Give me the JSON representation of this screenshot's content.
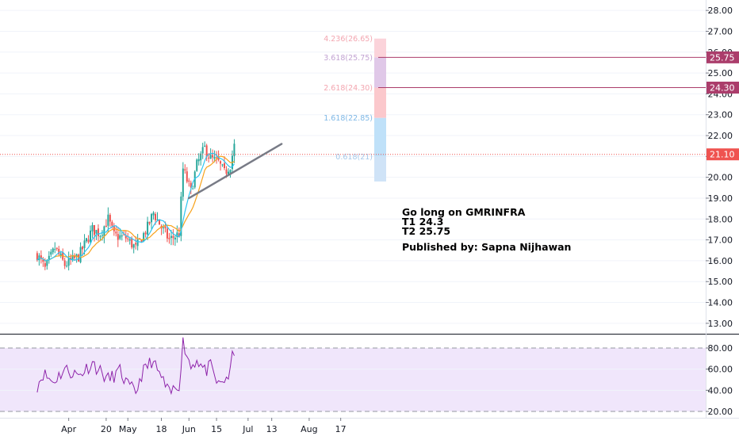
{
  "chart_data": [
    {
      "type": "candlestick",
      "symbol": "GMRINFRA",
      "title": "",
      "ylim": [
        12.5,
        28.5
      ],
      "y_ticks": [
        "13.00",
        "14.00",
        "15.00",
        "16.00",
        "17.00",
        "18.00",
        "19.00",
        "20.00",
        "21.00",
        "22.00",
        "23.00",
        "24.00",
        "25.00",
        "26.00",
        "27.00",
        "28.00"
      ],
      "x_ticks": [
        "Apr",
        "20",
        "May",
        "18",
        "Jun",
        "15",
        "Jul",
        "13",
        "Aug",
        "17"
      ],
      "last_price": 21.1,
      "last_price_label": "21.10",
      "moving_averages": [
        {
          "color": "#f7a21b",
          "role": "slow"
        },
        {
          "color": "#2ec4f1",
          "role": "fast"
        }
      ],
      "price_path": [
        {
          "date": "2020-03-16",
          "price": 16.3
        },
        {
          "date": "2020-03-20",
          "price": 15.6
        },
        {
          "date": "2020-03-25",
          "price": 16.6
        },
        {
          "date": "2020-03-30",
          "price": 15.8
        },
        {
          "date": "2020-04-06",
          "price": 16.2
        },
        {
          "date": "2020-04-13",
          "price": 17.5
        },
        {
          "date": "2020-04-17",
          "price": 17.3
        },
        {
          "date": "2020-04-21",
          "price": 18.0
        },
        {
          "date": "2020-04-24",
          "price": 17.2
        },
        {
          "date": "2020-04-30",
          "price": 17.1
        },
        {
          "date": "2020-05-05",
          "price": 16.6
        },
        {
          "date": "2020-05-11",
          "price": 17.6
        },
        {
          "date": "2020-05-14",
          "price": 18.3
        },
        {
          "date": "2020-05-18",
          "price": 17.6
        },
        {
          "date": "2020-05-22",
          "price": 17.0
        },
        {
          "date": "2020-05-27",
          "price": 17.3
        },
        {
          "date": "2020-05-29",
          "price": 20.4
        },
        {
          "date": "2020-06-02",
          "price": 19.3
        },
        {
          "date": "2020-06-05",
          "price": 20.6
        },
        {
          "date": "2020-06-09",
          "price": 21.4
        },
        {
          "date": "2020-06-12",
          "price": 20.9
        },
        {
          "date": "2020-06-16",
          "price": 20.7
        },
        {
          "date": "2020-06-19",
          "price": 20.2
        },
        {
          "date": "2020-06-22",
          "price": 20.6
        },
        {
          "date": "2020-06-24",
          "price": 21.5
        },
        {
          "date": "2020-06-25",
          "price": 21.1
        }
      ],
      "trendline": {
        "start": {
          "date": "2020-06-01",
          "price": 19.0
        },
        "end": {
          "date": "2020-07-18",
          "price": 21.6
        },
        "color": "#787b86"
      },
      "fib_extension": {
        "levels": [
          {
            "label": "0.618(21)",
            "value": 21.0,
            "color": "#cfe3f7"
          },
          {
            "label": "1.618(22.85)",
            "value": 22.85,
            "color": "#bfe1f9"
          },
          {
            "label": "2.618(24.30)",
            "value": 24.3,
            "color": "#fbc8cc"
          },
          {
            "label": "3.618(25.75)",
            "value": 25.75,
            "color": "#e0c8e8"
          },
          {
            "label": "4.236(26.65)",
            "value": 26.65,
            "color": "#fbd3da"
          }
        ]
      },
      "target_lines": [
        {
          "value": 24.3,
          "label": "24.30",
          "color": "#ab3d6b"
        },
        {
          "value": 25.75,
          "label": "25.75",
          "color": "#ab3d6b"
        }
      ],
      "annotations": [
        "Go long on GMRINFRA",
        "T1 24.3",
        "T2 25.75",
        "Published by: Sapna Nijhawan"
      ]
    },
    {
      "type": "line",
      "indicator": "RSI",
      "ylim": [
        14,
        92
      ],
      "y_ticks": [
        "20.00",
        "40.00",
        "60.00",
        "80.00"
      ],
      "band": [
        20,
        80
      ],
      "band_color": "#f0e6fb",
      "line_color": "#8e24aa",
      "rsi_path": [
        {
          "date": "2020-03-16",
          "value": 45
        },
        {
          "date": "2020-03-19",
          "value": 56
        },
        {
          "date": "2020-03-24",
          "value": 48
        },
        {
          "date": "2020-03-30",
          "value": 60
        },
        {
          "date": "2020-04-06",
          "value": 54
        },
        {
          "date": "2020-04-13",
          "value": 66
        },
        {
          "date": "2020-04-17",
          "value": 58
        },
        {
          "date": "2020-04-21",
          "value": 50
        },
        {
          "date": "2020-04-27",
          "value": 58
        },
        {
          "date": "2020-05-01",
          "value": 44
        },
        {
          "date": "2020-05-05",
          "value": 38
        },
        {
          "date": "2020-05-08",
          "value": 55
        },
        {
          "date": "2020-05-13",
          "value": 68
        },
        {
          "date": "2020-05-18",
          "value": 52
        },
        {
          "date": "2020-05-22",
          "value": 36
        },
        {
          "date": "2020-05-27",
          "value": 46
        },
        {
          "date": "2020-05-29",
          "value": 86
        },
        {
          "date": "2020-06-02",
          "value": 62
        },
        {
          "date": "2020-06-05",
          "value": 70
        },
        {
          "date": "2020-06-09",
          "value": 58
        },
        {
          "date": "2020-06-12",
          "value": 62
        },
        {
          "date": "2020-06-16",
          "value": 44
        },
        {
          "date": "2020-06-19",
          "value": 50
        },
        {
          "date": "2020-06-22",
          "value": 56
        },
        {
          "date": "2020-06-23",
          "value": 76
        },
        {
          "date": "2020-06-25",
          "value": 58
        }
      ]
    }
  ]
}
